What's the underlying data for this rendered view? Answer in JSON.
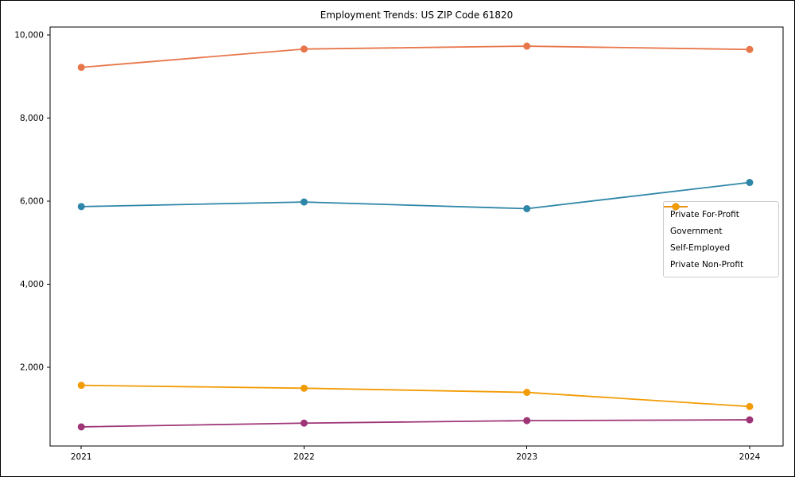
{
  "figure": {
    "title": "Employment Trends: US ZIP Code 61820"
  },
  "chart_data": {
    "type": "line",
    "title": "Employment Trends: US ZIP Code 61820",
    "xlabel": "",
    "ylabel": "",
    "x": [
      2021,
      2022,
      2023,
      2024
    ],
    "xtick_labels": [
      "2021",
      "2022",
      "2023",
      "2024"
    ],
    "ytick_values": [
      2000,
      4000,
      6000,
      8000,
      10000
    ],
    "ytick_labels": [
      "2,000",
      "4,000",
      "6,000",
      "8,000",
      "10,000"
    ],
    "xlim": [
      2020.86,
      2024.15
    ],
    "ylim": [
      110,
      10190
    ],
    "grid": false,
    "legend_position": "center-right",
    "series": [
      {
        "name": "Private For-Profit",
        "color": "#e8764b",
        "values": [
          9220,
          9660,
          9730,
          9650
        ]
      },
      {
        "name": "Government",
        "color": "#2e86a8",
        "values": [
          5870,
          5980,
          5820,
          6450
        ]
      },
      {
        "name": "Self-Employed",
        "color": "#9e3577",
        "values": [
          570,
          660,
          720,
          740
        ]
      },
      {
        "name": "Private Non-Profit",
        "color": "#f29c05",
        "values": [
          1570,
          1500,
          1400,
          1060
        ]
      }
    ]
  }
}
